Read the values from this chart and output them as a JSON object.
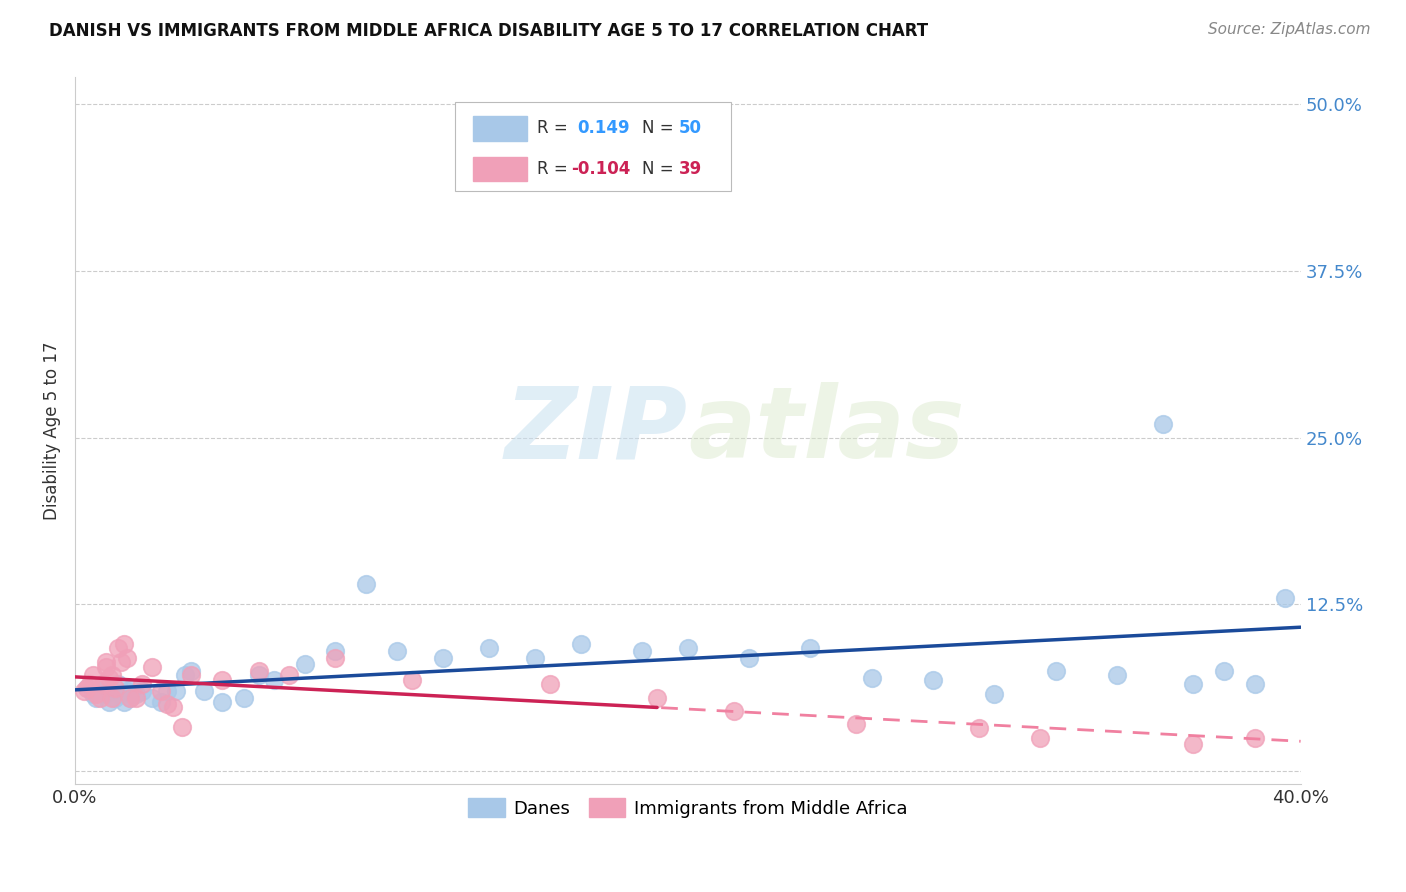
{
  "title": "DANISH VS IMMIGRANTS FROM MIDDLE AFRICA DISABILITY AGE 5 TO 17 CORRELATION CHART",
  "source": "Source: ZipAtlas.com",
  "ylabel": "Disability Age 5 to 17",
  "xlim": [
    0.0,
    0.4
  ],
  "ylim": [
    -0.01,
    0.52
  ],
  "ytick_vals": [
    0.0,
    0.125,
    0.25,
    0.375,
    0.5
  ],
  "ytick_labels": [
    "",
    "12.5%",
    "25.0%",
    "37.5%",
    "50.0%"
  ],
  "xtick_vals": [
    0.0,
    0.1,
    0.2,
    0.3,
    0.4
  ],
  "xtick_labels": [
    "0.0%",
    "",
    "",
    "",
    "40.0%"
  ],
  "danes_color": "#a8c8e8",
  "immigrants_color": "#f0a0b8",
  "danes_line_color": "#1a4a9a",
  "immigrants_line_solid_color": "#cc2255",
  "immigrants_line_dash_color": "#f080a0",
  "watermark_zip": "ZIP",
  "watermark_atlas": "atlas",
  "danes_x": [
    0.004,
    0.006,
    0.007,
    0.008,
    0.009,
    0.01,
    0.011,
    0.012,
    0.013,
    0.014,
    0.015,
    0.016,
    0.017,
    0.018,
    0.019,
    0.02,
    0.022,
    0.025,
    0.028,
    0.03,
    0.033,
    0.036,
    0.038,
    0.042,
    0.048,
    0.055,
    0.06,
    0.065,
    0.075,
    0.085,
    0.095,
    0.105,
    0.12,
    0.135,
    0.15,
    0.165,
    0.185,
    0.2,
    0.22,
    0.24,
    0.26,
    0.28,
    0.3,
    0.32,
    0.34,
    0.355,
    0.365,
    0.375,
    0.385,
    0.395
  ],
  "danes_y": [
    0.062,
    0.058,
    0.055,
    0.06,
    0.065,
    0.058,
    0.052,
    0.06,
    0.055,
    0.065,
    0.058,
    0.052,
    0.06,
    0.055,
    0.062,
    0.058,
    0.06,
    0.055,
    0.052,
    0.06,
    0.06,
    0.072,
    0.075,
    0.06,
    0.052,
    0.055,
    0.072,
    0.068,
    0.08,
    0.09,
    0.14,
    0.09,
    0.085,
    0.092,
    0.085,
    0.095,
    0.09,
    0.092,
    0.085,
    0.092,
    0.07,
    0.068,
    0.058,
    0.075,
    0.072,
    0.26,
    0.065,
    0.075,
    0.065,
    0.13
  ],
  "immigrants_x": [
    0.003,
    0.004,
    0.005,
    0.006,
    0.007,
    0.008,
    0.009,
    0.01,
    0.01,
    0.011,
    0.012,
    0.012,
    0.013,
    0.014,
    0.015,
    0.016,
    0.017,
    0.018,
    0.02,
    0.022,
    0.025,
    0.028,
    0.03,
    0.032,
    0.035,
    0.038,
    0.048,
    0.06,
    0.07,
    0.085,
    0.11,
    0.155,
    0.19,
    0.215,
    0.255,
    0.295,
    0.315,
    0.365,
    0.385
  ],
  "immigrants_y": [
    0.06,
    0.062,
    0.065,
    0.072,
    0.058,
    0.055,
    0.065,
    0.078,
    0.082,
    0.07,
    0.055,
    0.072,
    0.062,
    0.092,
    0.082,
    0.095,
    0.085,
    0.055,
    0.055,
    0.065,
    0.078,
    0.06,
    0.05,
    0.048,
    0.033,
    0.072,
    0.068,
    0.075,
    0.072,
    0.085,
    0.068,
    0.065,
    0.055,
    0.045,
    0.035,
    0.032,
    0.025,
    0.02,
    0.025
  ],
  "background_color": "#ffffff",
  "grid_color": "#cccccc"
}
